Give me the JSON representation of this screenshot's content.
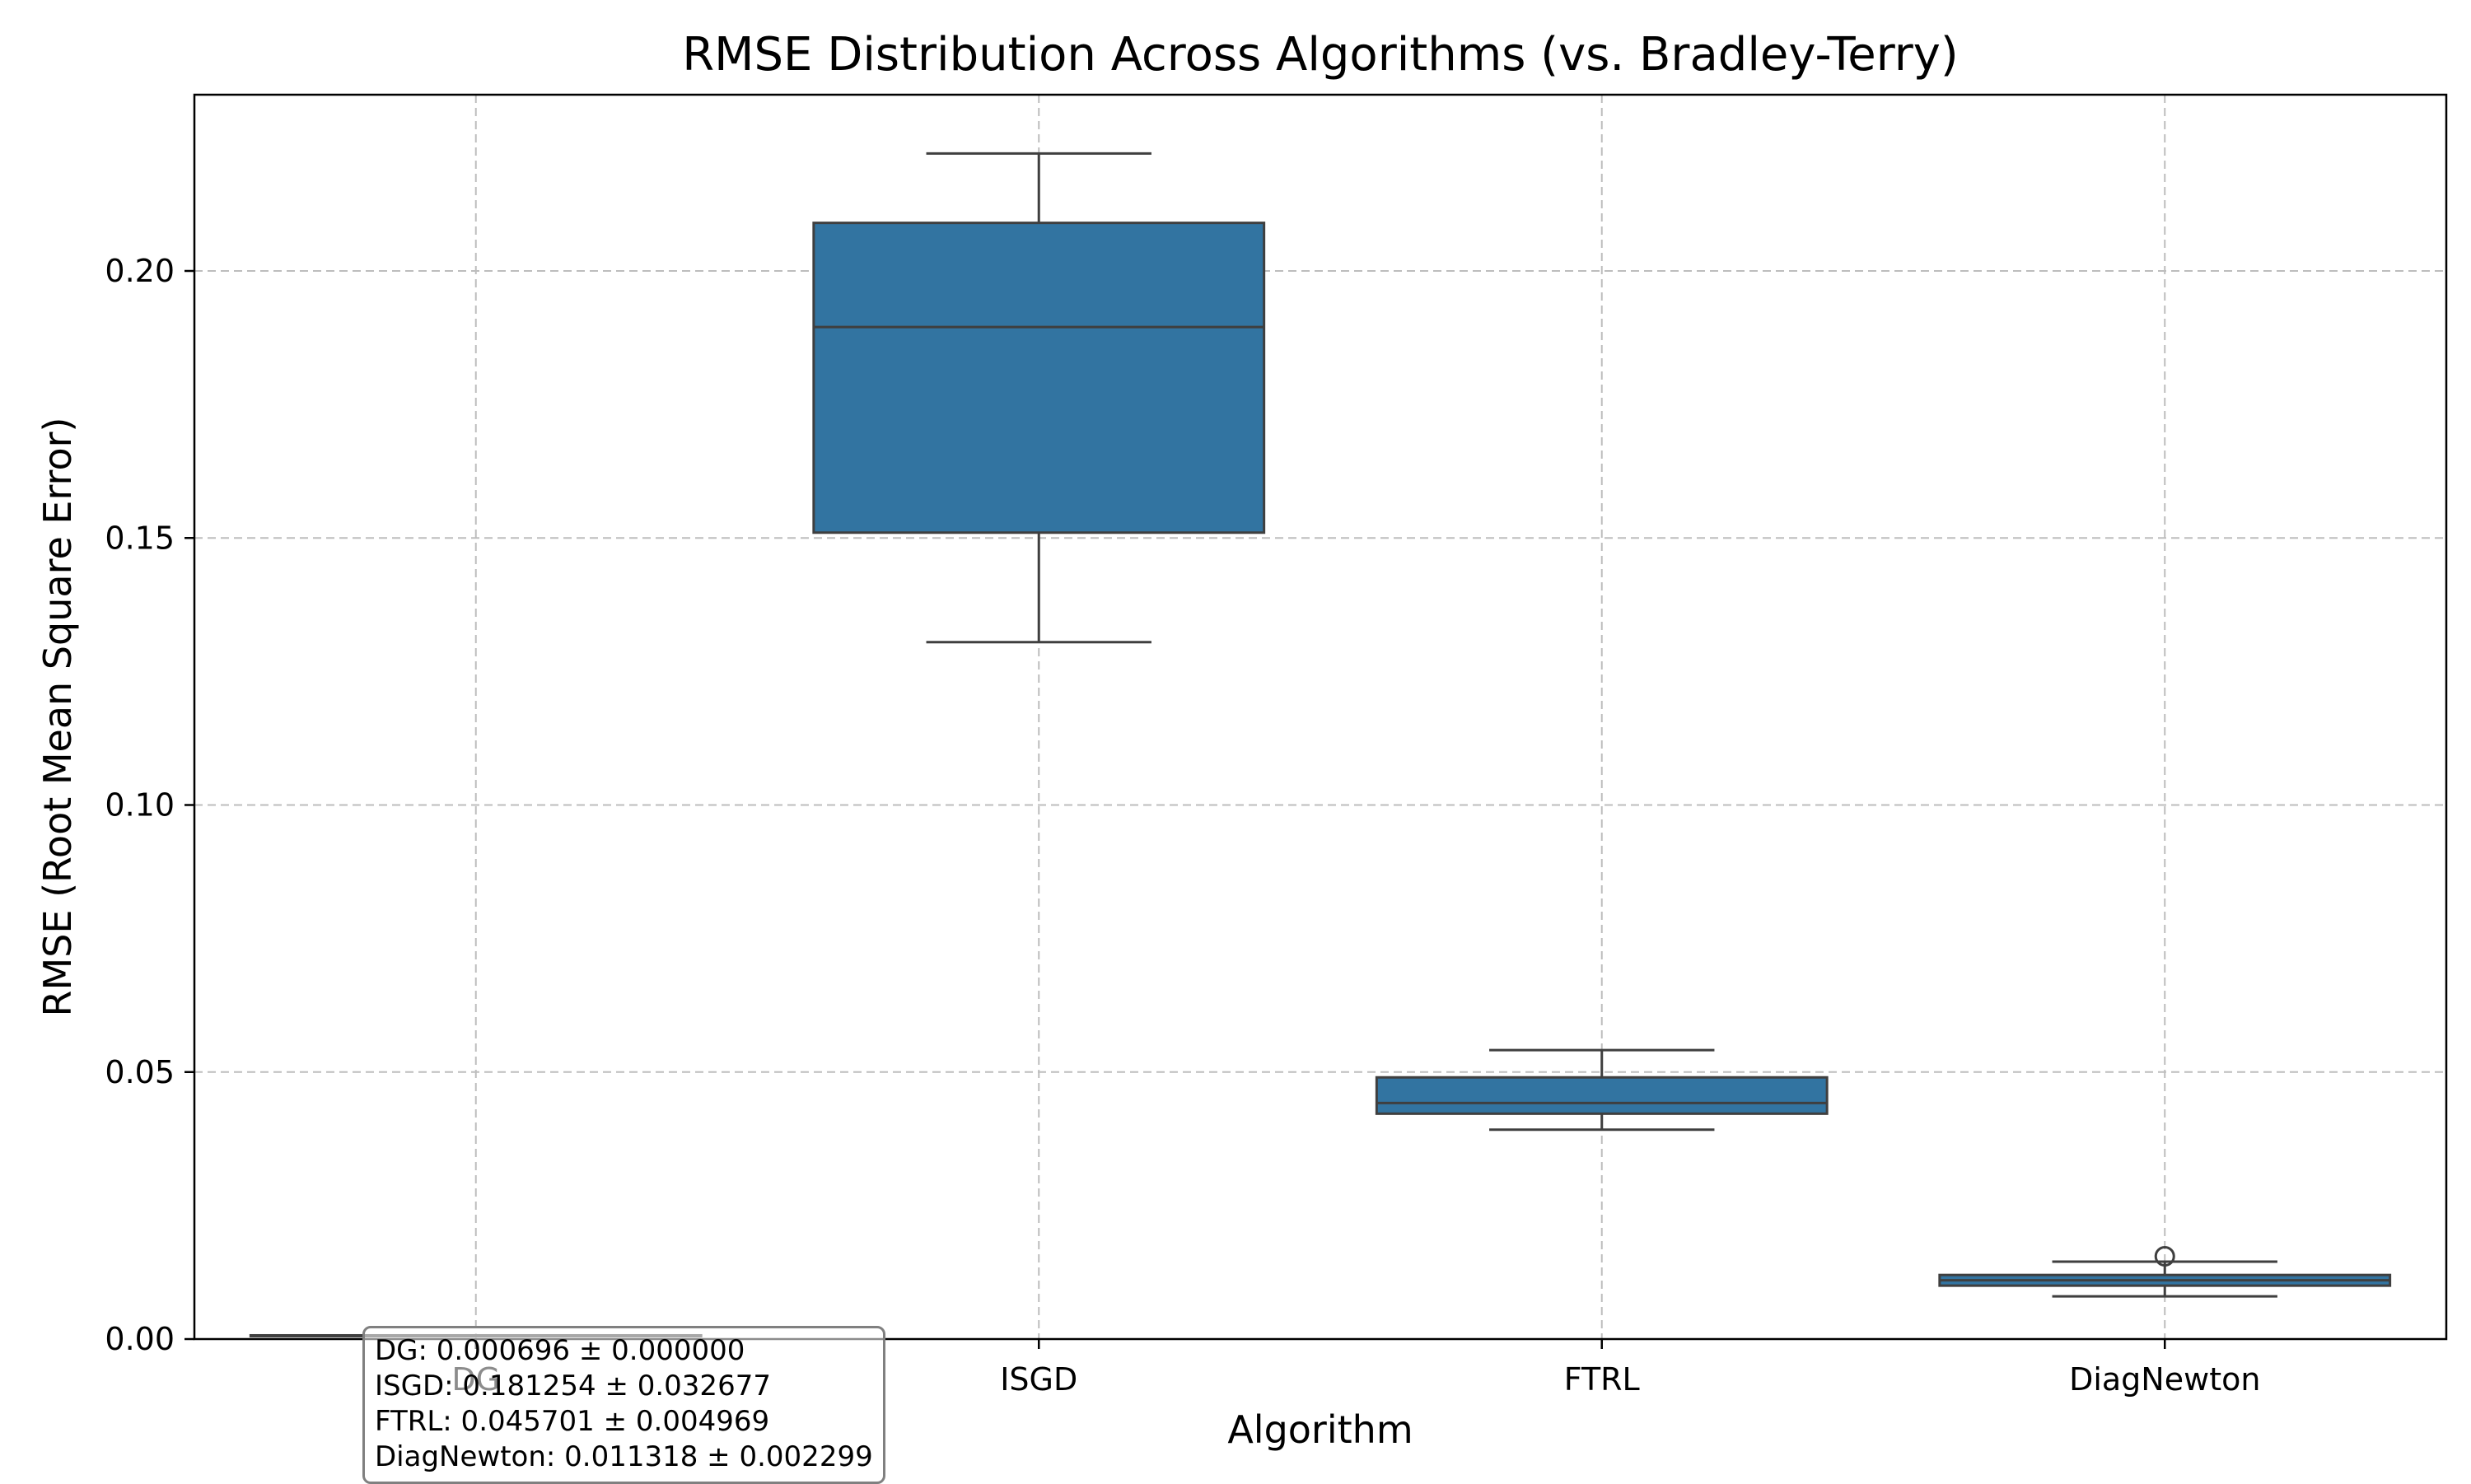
{
  "chart_data": {
    "type": "box",
    "title": "RMSE Distribution Across Algorithms (vs. Bradley-Terry)",
    "xlabel": "Algorithm",
    "ylabel": "RMSE (Root Mean Square Error)",
    "ylim": [
      0,
      0.233
    ],
    "yticks": [
      "0.00",
      "0.05",
      "0.10",
      "0.15",
      "0.20"
    ],
    "ytick_values": [
      0,
      0.05,
      0.1,
      0.15,
      0.2
    ],
    "grid": true,
    "box_color": "#3274a1",
    "edge_color": "#3f3f3f",
    "categories": [
      "DG",
      "ISGD",
      "FTRL",
      "DiagNewton"
    ],
    "boxes": [
      {
        "category": "DG",
        "whisker_low": 0.000696,
        "q1": 0.000696,
        "median": 0.000696,
        "q3": 0.000696,
        "whisker_high": 0.000696,
        "outliers": []
      },
      {
        "category": "ISGD",
        "whisker_low": 0.1305,
        "q1": 0.151,
        "median": 0.1895,
        "q3": 0.209,
        "whisker_high": 0.222,
        "outliers": []
      },
      {
        "category": "FTRL",
        "whisker_low": 0.0392,
        "q1": 0.0422,
        "median": 0.0442,
        "q3": 0.049,
        "whisker_high": 0.0541,
        "outliers": []
      },
      {
        "category": "DiagNewton",
        "whisker_low": 0.008,
        "q1": 0.01,
        "median": 0.011,
        "q3": 0.012,
        "whisker_high": 0.0145,
        "outliers": [
          0.0155
        ]
      }
    ],
    "stats_text": [
      "DG: 0.000696 ± 0.000000",
      "ISGD: 0.181254 ± 0.032677",
      "FTRL: 0.045701 ± 0.004969",
      "DiagNewton: 0.011318 ± 0.002299"
    ]
  }
}
